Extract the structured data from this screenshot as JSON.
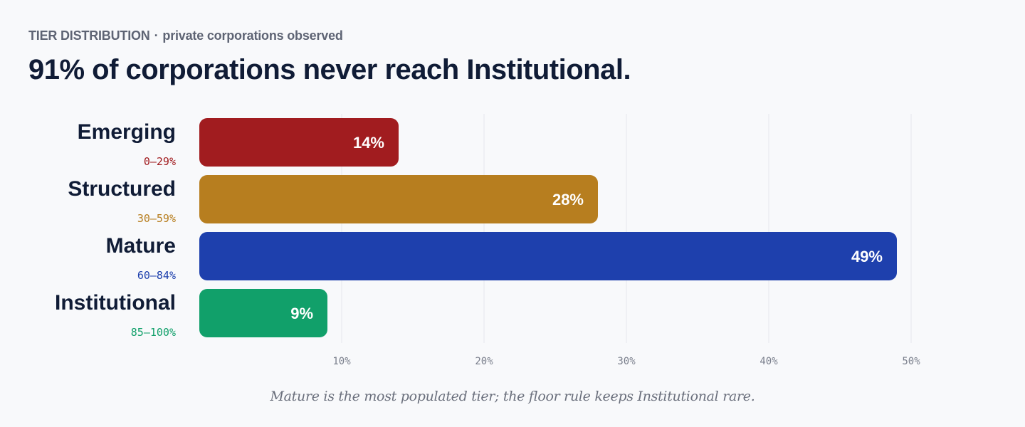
{
  "header": {
    "eyebrow_label": "TIER DISTRIBUTION",
    "eyebrow_separator": "·",
    "eyebrow_detail": "private corporations observed",
    "headline": "91% of corporations never reach Institutional."
  },
  "caption": "Mature is the most populated tier; the floor rule keeps Institutional rare.",
  "chart_data": {
    "type": "bar",
    "orientation": "horizontal",
    "categories": [
      "Emerging",
      "Structured",
      "Mature",
      "Institutional"
    ],
    "ranges": [
      "0–29%",
      "30–59%",
      "60–84%",
      "85–100%"
    ],
    "values": [
      14,
      28,
      49,
      9
    ],
    "value_labels": [
      "14%",
      "28%",
      "49%",
      "9%"
    ],
    "colors": [
      "#a11c1f",
      "#b77e1f",
      "#1e40ad",
      "#11a06a"
    ],
    "xlim": [
      0,
      50
    ],
    "x_ticks": [
      10,
      20,
      30,
      40,
      50
    ],
    "x_tick_labels": [
      "10%",
      "20%",
      "30%",
      "40%",
      "50%"
    ],
    "grid": true,
    "legend": "none"
  }
}
